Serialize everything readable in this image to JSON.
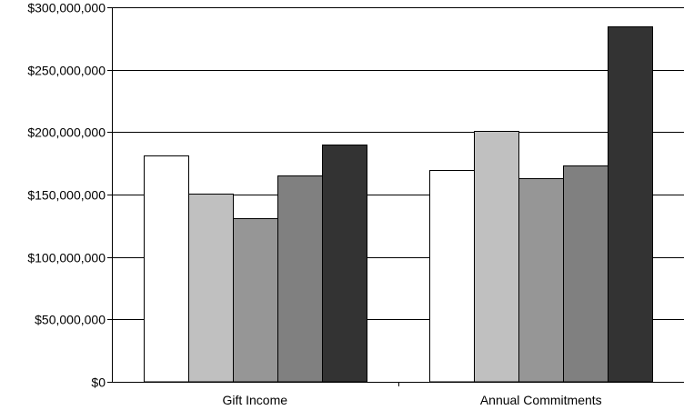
{
  "chart_data": {
    "type": "bar",
    "title": "",
    "xlabel": "",
    "ylabel": "",
    "categories": [
      "Gift Income",
      "Annual Commitments"
    ],
    "series": [
      {
        "color": "#ffffff",
        "values": [
          181000000,
          170000000
        ]
      },
      {
        "color": "#c0c0c0",
        "values": [
          151000000,
          201000000
        ]
      },
      {
        "color": "#969696",
        "values": [
          131000000,
          163000000
        ]
      },
      {
        "color": "#808080",
        "values": [
          165000000,
          173000000
        ]
      },
      {
        "color": "#333333",
        "values": [
          190000000,
          285000000
        ]
      }
    ],
    "ylim": [
      0,
      300000000
    ],
    "yticks": [
      {
        "value": 0,
        "label": "$0"
      },
      {
        "value": 50000000,
        "label": "$50,000,000"
      },
      {
        "value": 100000000,
        "label": "$100,000,000"
      },
      {
        "value": 150000000,
        "label": "$150,000,000"
      },
      {
        "value": 200000000,
        "label": "$200,000,000"
      },
      {
        "value": 250000000,
        "label": "$250,000,000"
      },
      {
        "value": 300000000,
        "label": "$300,000,000"
      }
    ],
    "grid": true,
    "legend": "none"
  }
}
